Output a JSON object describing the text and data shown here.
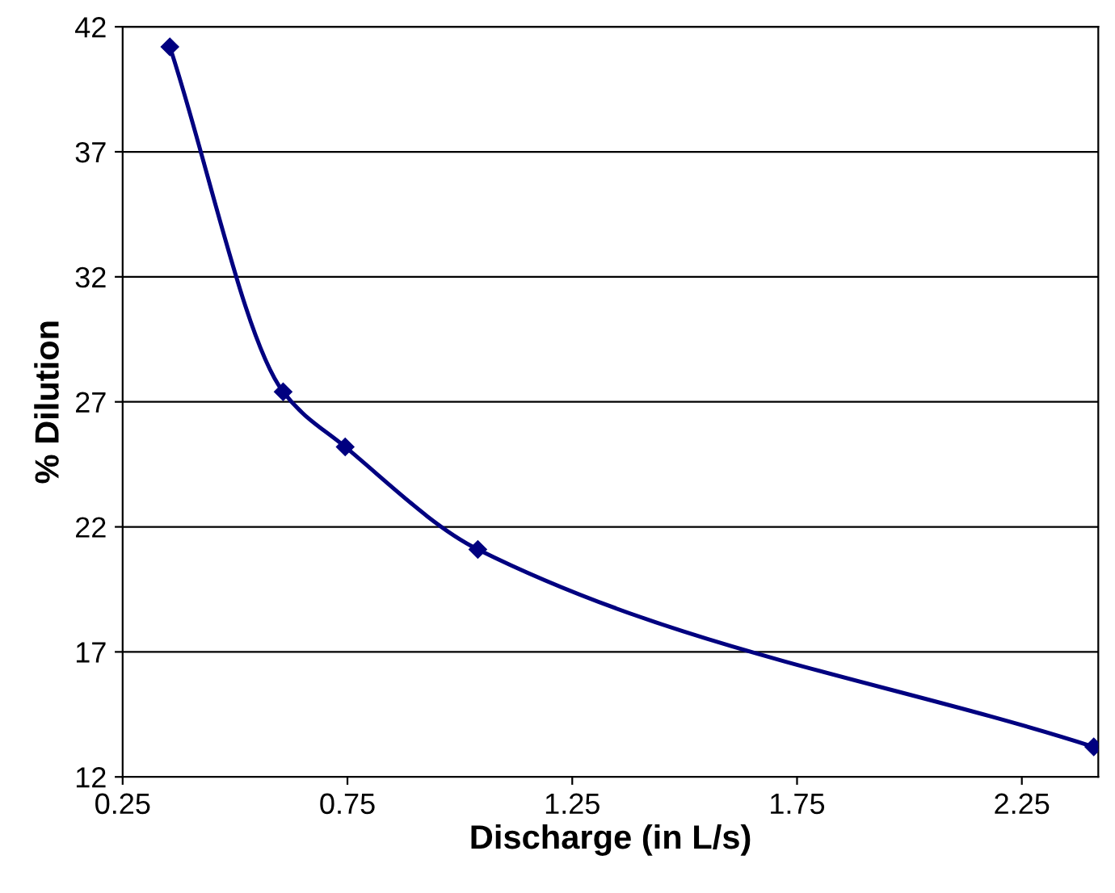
{
  "chart_data": {
    "type": "line",
    "xlabel": "Discharge (in L/s)",
    "ylabel": "% Dilution",
    "x": [
      0.355,
      0.607,
      0.745,
      1.04,
      2.41
    ],
    "series": [
      {
        "color": "#000080",
        "values": [
          41.2,
          27.4,
          25.2,
          21.1,
          13.2
        ]
      }
    ],
    "xlim": [
      0.25,
      2.42
    ],
    "xticks": [
      0.25,
      0.75,
      1.25,
      1.75,
      2.25
    ],
    "ylim": [
      12,
      42
    ],
    "yticks": [
      12,
      17,
      22,
      27,
      32,
      37,
      42
    ],
    "grid": "y",
    "marker": "diamond",
    "line_style": "solid",
    "legend": false
  }
}
